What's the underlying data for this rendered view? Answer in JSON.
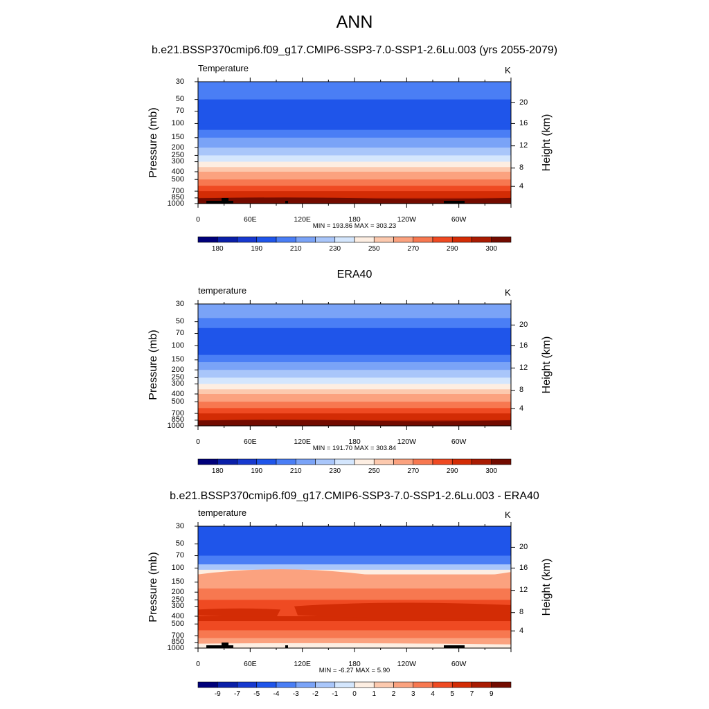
{
  "figure": {
    "title": "ANN",
    "subtitle": "b.e21.BSSP370cmip6.f09_g17.CMIP6-SSP3-7.0-SSP1-2.6Lu.003 (yrs 2055-2079)"
  },
  "chart_data": [
    {
      "type": "heatmap",
      "panel_title": "",
      "variable": "Temperature",
      "units": "K",
      "xlabel": "",
      "ylabel": "Pressure (mb)",
      "ylabel_right": "Height (km)",
      "x_ticks": [
        "0",
        "60E",
        "120E",
        "180",
        "120W",
        "60W"
      ],
      "y_ticks": [
        "30",
        "50",
        "70",
        "100",
        "150",
        "200",
        "250",
        "300",
        "400",
        "500",
        "700",
        "850",
        "1000"
      ],
      "y_ticks_right": [
        "20",
        "16",
        "12",
        "8",
        "4"
      ],
      "ylim": [
        1000,
        30
      ],
      "min_label": "MIN = 193.86  MAX = 303.23",
      "min": 193.86,
      "max": 303.23,
      "colorbar": {
        "levels": [
          "180",
          "190",
          "210",
          "230",
          "250",
          "270",
          "290",
          "300"
        ],
        "colors": [
          "#00007a",
          "#0a1fa8",
          "#1739cf",
          "#1f55ea",
          "#4a7ef5",
          "#7aa3f7",
          "#a9c6fa",
          "#d4e6fd",
          "#fdeee2",
          "#fcc9ae",
          "#fba27f",
          "#f77850",
          "#ef4a22",
          "#d32c05",
          "#a91b02",
          "#730b00"
        ]
      },
      "profile": [
        {
          "p": 30,
          "level": 4
        },
        {
          "p": 50,
          "level": 3
        },
        {
          "p": 70,
          "level": 3
        },
        {
          "p": 100,
          "level": 3
        },
        {
          "p": 120,
          "level": 4
        },
        {
          "p": 150,
          "level": 5
        },
        {
          "p": 200,
          "level": 6
        },
        {
          "p": 250,
          "level": 7
        },
        {
          "p": 300,
          "level": 8
        },
        {
          "p": 350,
          "level": 9
        },
        {
          "p": 400,
          "level": 10
        },
        {
          "p": 500,
          "level": 11
        },
        {
          "p": 600,
          "level": 12
        },
        {
          "p": 700,
          "level": 13
        },
        {
          "p": 850,
          "level": 14
        },
        {
          "p": 950,
          "level": 15
        }
      ],
      "surface_blocks": true
    },
    {
      "type": "heatmap",
      "panel_title": "ERA40",
      "variable": "temperature",
      "units": "K",
      "xlabel": "",
      "ylabel": "Pressure (mb)",
      "ylabel_right": "Height (km)",
      "x_ticks": [
        "0",
        "60E",
        "120E",
        "180",
        "120W",
        "60W"
      ],
      "y_ticks": [
        "30",
        "50",
        "70",
        "100",
        "150",
        "200",
        "250",
        "300",
        "400",
        "500",
        "700",
        "850",
        "1000"
      ],
      "y_ticks_right": [
        "20",
        "16",
        "12",
        "8",
        "4"
      ],
      "ylim": [
        1000,
        30
      ],
      "min_label": "MIN = 191.70  MAX = 303.84",
      "min": 191.7,
      "max": 303.84,
      "colorbar": {
        "levels": [
          "180",
          "190",
          "210",
          "230",
          "250",
          "270",
          "290",
          "300"
        ],
        "colors": [
          "#00007a",
          "#0a1fa8",
          "#1739cf",
          "#1f55ea",
          "#4a7ef5",
          "#7aa3f7",
          "#a9c6fa",
          "#d4e6fd",
          "#fdeee2",
          "#fcc9ae",
          "#fba27f",
          "#f77850",
          "#ef4a22",
          "#d32c05",
          "#a91b02",
          "#730b00"
        ]
      },
      "profile": [
        {
          "p": 30,
          "level": 5
        },
        {
          "p": 45,
          "level": 4
        },
        {
          "p": 60,
          "level": 3
        },
        {
          "p": 100,
          "level": 3
        },
        {
          "p": 130,
          "level": 4
        },
        {
          "p": 160,
          "level": 5
        },
        {
          "p": 200,
          "level": 6
        },
        {
          "p": 250,
          "level": 7
        },
        {
          "p": 300,
          "level": 8
        },
        {
          "p": 350,
          "level": 9
        },
        {
          "p": 400,
          "level": 10
        },
        {
          "p": 500,
          "level": 11
        },
        {
          "p": 600,
          "level": 12
        },
        {
          "p": 700,
          "level": 13
        },
        {
          "p": 850,
          "level": 14
        },
        {
          "p": 950,
          "level": 15
        }
      ],
      "surface_blocks": false
    },
    {
      "type": "heatmap",
      "panel_title": "b.e21.BSSP370cmip6.f09_g17.CMIP6-SSP3-7.0-SSP1-2.6Lu.003 - ERA40",
      "variable": "temperature",
      "units": "K",
      "xlabel": "",
      "ylabel": "Pressure (mb)",
      "ylabel_right": "Height (km)",
      "x_ticks": [
        "0",
        "60E",
        "120E",
        "180",
        "120W",
        "60W"
      ],
      "y_ticks": [
        "30",
        "50",
        "70",
        "100",
        "150",
        "200",
        "250",
        "300",
        "400",
        "500",
        "700",
        "850",
        "1000"
      ],
      "y_ticks_right": [
        "20",
        "16",
        "12",
        "8",
        "4"
      ],
      "ylim": [
        1000,
        30
      ],
      "min_label": "MIN =  -6.27  MAX =   5.90",
      "min": -6.27,
      "max": 5.9,
      "colorbar": {
        "levels": [
          "-9",
          "-7",
          "-5",
          "-4",
          "-3",
          "-2",
          "-1",
          "0",
          "1",
          "2",
          "3",
          "4",
          "5",
          "7",
          "9"
        ],
        "colors": [
          "#00007a",
          "#0a1fa8",
          "#1739cf",
          "#1f55ea",
          "#4a7ef5",
          "#7aa3f7",
          "#a9c6fa",
          "#d4e6fd",
          "#fdeee2",
          "#fcc9ae",
          "#fba27f",
          "#f77850",
          "#ef4a22",
          "#d32c05",
          "#a91b02",
          "#730b00"
        ]
      },
      "profile": [
        {
          "p": 30,
          "level": 3
        },
        {
          "p": 70,
          "level": 4
        },
        {
          "p": 90,
          "level": 6
        },
        {
          "p": 105,
          "level": 8
        },
        {
          "p": 120,
          "level": 10
        },
        {
          "p": 180,
          "level": 11
        },
        {
          "p": 250,
          "level": 12
        },
        {
          "p": 400,
          "level": 13
        },
        {
          "p": 460,
          "level": 12
        },
        {
          "p": 600,
          "level": 11
        },
        {
          "p": 750,
          "level": 10
        },
        {
          "p": 900,
          "level": 9
        }
      ],
      "surface_blocks": true
    }
  ]
}
